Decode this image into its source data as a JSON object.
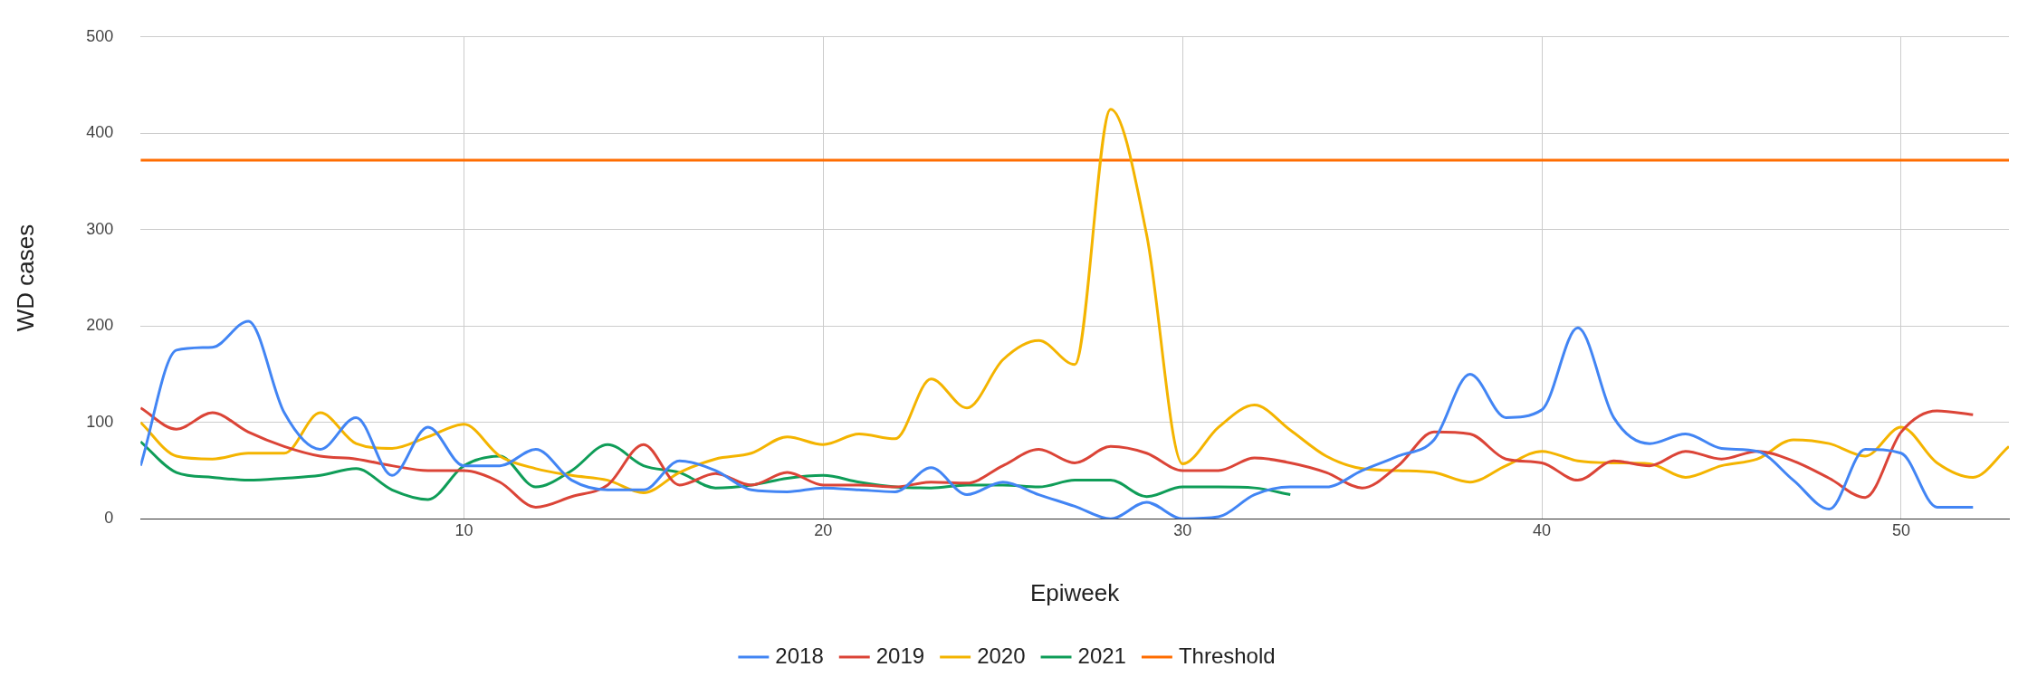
{
  "chart_data": {
    "type": "line",
    "xlabel": "Epiweek",
    "ylabel": "WD cases",
    "x": [
      1,
      2,
      3,
      4,
      5,
      6,
      7,
      8,
      9,
      10,
      11,
      12,
      13,
      14,
      15,
      16,
      17,
      18,
      19,
      20,
      21,
      22,
      23,
      24,
      25,
      26,
      27,
      28,
      29,
      30,
      31,
      32,
      33,
      34,
      35,
      36,
      37,
      38,
      39,
      40,
      41,
      42,
      43,
      44,
      45,
      46,
      47,
      48,
      49,
      50,
      51,
      52,
      53
    ],
    "series": [
      {
        "name": "2018",
        "color": "#4285f4",
        "values": [
          55,
          175,
          178,
          205,
          110,
          72,
          105,
          45,
          95,
          55,
          55,
          72,
          40,
          30,
          30,
          60,
          50,
          30,
          28,
          32,
          30,
          28,
          53,
          25,
          38,
          25,
          13,
          0,
          17,
          0,
          2,
          25,
          33,
          33,
          50,
          65,
          82,
          150,
          105,
          113,
          198,
          105,
          78,
          88,
          73,
          70,
          40,
          10,
          72,
          68,
          12,
          12,
          null
        ]
      },
      {
        "name": "2019",
        "color": "#db4437",
        "values": [
          115,
          93,
          110,
          90,
          75,
          65,
          62,
          55,
          50,
          50,
          38,
          12,
          23,
          35,
          77,
          35,
          47,
          35,
          48,
          35,
          35,
          33,
          38,
          37,
          55,
          72,
          58,
          75,
          68,
          50,
          50,
          63,
          58,
          48,
          32,
          55,
          90,
          88,
          62,
          58,
          40,
          60,
          55,
          70,
          62,
          70,
          60,
          42,
          22,
          90,
          112,
          108,
          null
        ]
      },
      {
        "name": "2020",
        "color": "#f4b400",
        "values": [
          100,
          65,
          62,
          68,
          68,
          110,
          78,
          73,
          85,
          98,
          65,
          52,
          45,
          40,
          27,
          48,
          62,
          68,
          85,
          77,
          88,
          83,
          145,
          115,
          165,
          185,
          160,
          425,
          295,
          57,
          95,
          118,
          92,
          65,
          52,
          50,
          48,
          38,
          55,
          70,
          60,
          58,
          57,
          43,
          55,
          62,
          82,
          78,
          65,
          95,
          58,
          43,
          75
        ]
      },
      {
        "name": "2021",
        "color": "#0f9d58",
        "values": [
          80,
          48,
          43,
          40,
          42,
          45,
          52,
          30,
          20,
          55,
          65,
          33,
          50,
          77,
          55,
          48,
          32,
          35,
          42,
          45,
          38,
          33,
          32,
          35,
          35,
          33,
          40,
          40,
          23,
          33,
          33,
          32,
          25,
          null,
          null,
          null,
          null,
          null,
          null,
          null,
          null,
          null,
          null,
          null,
          null,
          null,
          null,
          null,
          null,
          null,
          null,
          null,
          null
        ]
      },
      {
        "name": "Threshold",
        "color": "#ff6d01",
        "x": [
          1,
          53
        ],
        "values": [
          372,
          372
        ]
      }
    ],
    "xlim": [
      1,
      53
    ],
    "xticks": [
      10,
      20,
      30,
      40,
      50
    ],
    "ylim": [
      0,
      500
    ],
    "yticks": [
      0,
      100,
      200,
      300,
      400,
      500
    ],
    "grid": true,
    "legend": "bottom",
    "marker": "none",
    "line_style": "solid"
  }
}
